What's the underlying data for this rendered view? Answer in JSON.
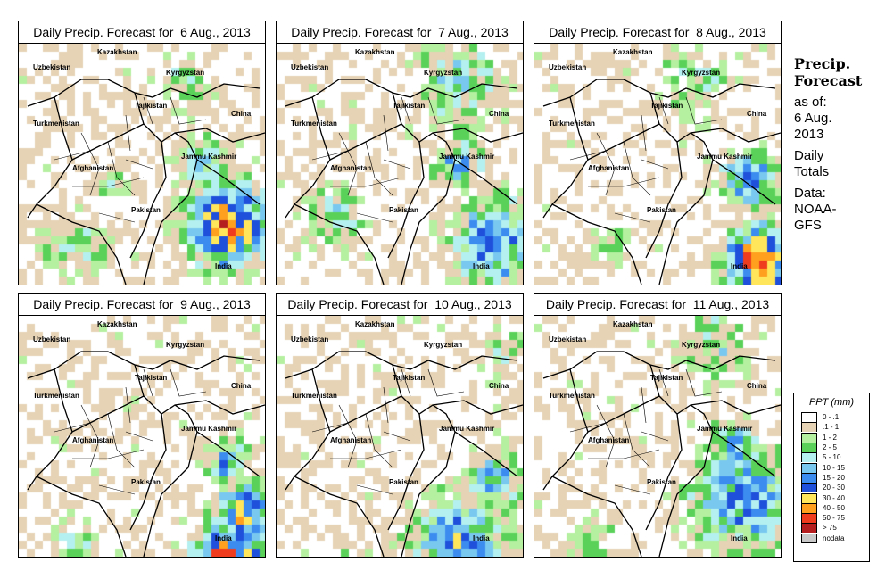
{
  "panels": [
    {
      "title": "Daily Precip. Forecast for  6 Aug., 2013"
    },
    {
      "title": "Daily Precip. Forecast for  7 Aug., 2013"
    },
    {
      "title": "Daily Precip. Forecast for  8 Aug., 2013"
    },
    {
      "title": "Daily Precip. Forecast for  9 Aug., 2013"
    },
    {
      "title": "Daily Precip. Forecast for  10 Aug., 2013"
    },
    {
      "title": "Daily Precip. Forecast for  11 Aug., 2013"
    }
  ],
  "map_labels": {
    "kazakhstan": "Kazakhstan",
    "uzbekistan": "Uzbekistan",
    "kyrgyzstan": "Kyrgyzstan",
    "tajikistan": "Tajikistan",
    "turkmenistan": "Turkmenistan",
    "china": "China",
    "afghanistan": "Afghanistan",
    "jammu_kashmir": "Jammu Kashmir",
    "pakistan": "Pakistan",
    "india": "India"
  },
  "sidebar": {
    "heading1": "Precip.",
    "heading2": "Forecast",
    "asof1": "as of:",
    "asof2": "6 Aug.",
    "asof3": "2013",
    "daily1": "Daily",
    "daily2": "Totals",
    "data1": "Data:",
    "data2": "NOAA-",
    "data3": "GFS"
  },
  "legend": {
    "title": "PPT (mm)",
    "items": [
      {
        "label": "0 - .1",
        "color": "#ffffff"
      },
      {
        "label": ".1 - 1",
        "color": "#e6d2b4"
      },
      {
        "label": "1 - 2",
        "color": "#b4f0a0"
      },
      {
        "label": "2 - 5",
        "color": "#5ad25a"
      },
      {
        "label": "5 - 10",
        "color": "#b4f0f0"
      },
      {
        "label": "10 - 15",
        "color": "#78c8f0"
      },
      {
        "label": "15 - 20",
        "color": "#3c8cf0"
      },
      {
        "label": "20 - 30",
        "color": "#1e50dc"
      },
      {
        "label": "30 - 40",
        "color": "#ffe65a"
      },
      {
        "label": "40 - 50",
        "color": "#ffa01e"
      },
      {
        "label": "50 - 75",
        "color": "#f03c1e"
      },
      {
        "label": "> 75",
        "color": "#b41e1e"
      },
      {
        "label": "nodata",
        "color": "#c8c8c8"
      }
    ]
  }
}
